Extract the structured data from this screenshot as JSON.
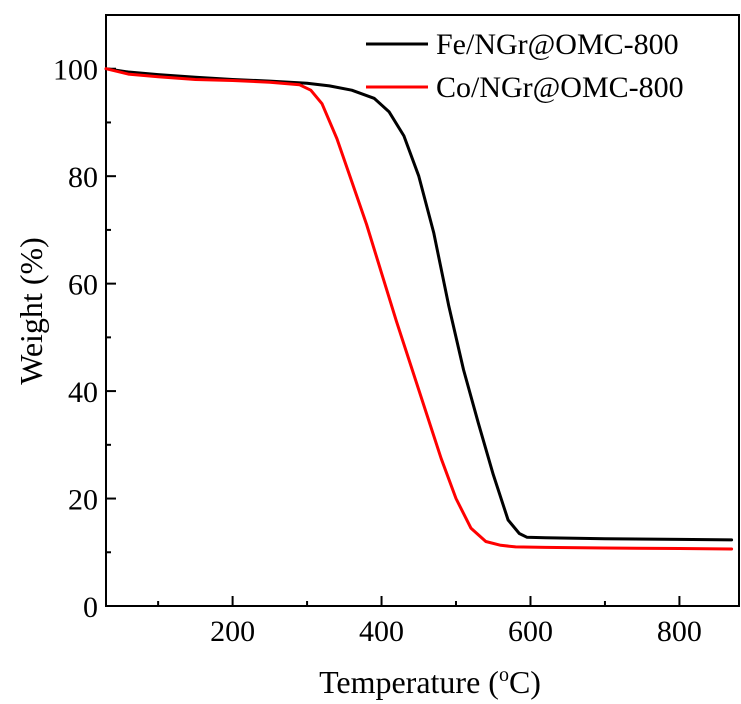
{
  "chart_data": {
    "type": "line",
    "xlabel": "Temperature (",
    "xlabel_sup": "o",
    "xlabel_unit": "C)",
    "ylabel": "Weight (%)",
    "xlim": [
      30,
      880
    ],
    "ylim": [
      0,
      110
    ],
    "x_ticks": [
      200,
      400,
      600,
      800
    ],
    "x_tick_labels": [
      "200",
      "400",
      "600",
      "800"
    ],
    "y_ticks": [
      0,
      20,
      40,
      60,
      80,
      100
    ],
    "y_tick_labels": [
      "0",
      "20",
      "40",
      "60",
      "80",
      "100"
    ],
    "grid": false,
    "legend_position": "top-right",
    "series": [
      {
        "name": "Fe/NGr@OMC-800",
        "color": "#000000",
        "x": [
          30,
          60,
          100,
          150,
          200,
          250,
          300,
          330,
          360,
          390,
          410,
          430,
          450,
          470,
          490,
          510,
          530,
          550,
          570,
          585,
          595,
          620,
          700,
          800,
          870
        ],
        "y": [
          100,
          99.4,
          98.9,
          98.4,
          98.0,
          97.7,
          97.3,
          96.8,
          96.0,
          94.5,
          92.0,
          87.5,
          80.0,
          69.5,
          56.0,
          44.0,
          34.0,
          24.5,
          16.0,
          13.5,
          12.8,
          12.7,
          12.5,
          12.4,
          12.3
        ]
      },
      {
        "name": "Co/NGr@OMC-800",
        "color": "#ff0000",
        "x": [
          30,
          60,
          100,
          150,
          200,
          250,
          290,
          305,
          320,
          340,
          360,
          380,
          400,
          420,
          440,
          460,
          480,
          500,
          520,
          540,
          560,
          580,
          620,
          700,
          800,
          870
        ],
        "y": [
          100,
          99.0,
          98.5,
          98.0,
          97.8,
          97.5,
          97.0,
          96.0,
          93.5,
          87.0,
          79.0,
          71.0,
          62.0,
          53.0,
          44.5,
          36.0,
          27.5,
          20.0,
          14.5,
          12.0,
          11.3,
          11.0,
          10.9,
          10.8,
          10.7,
          10.6
        ]
      }
    ]
  }
}
